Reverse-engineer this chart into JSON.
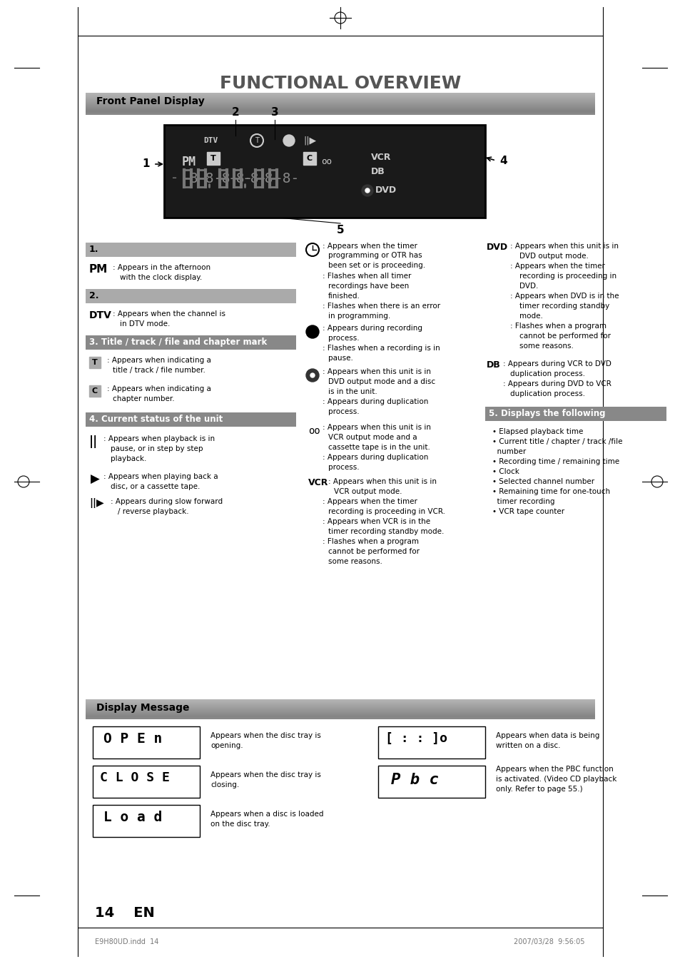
{
  "title": "FUNCTIONAL OVERVIEW",
  "section1_title": "Front Panel Display",
  "section2_title": "Display Message",
  "page_number": "14    EN",
  "footer_left": "E9H80UD.indd  14",
  "footer_right": "2007/03/28  9:56:05",
  "bg_color": "#ffffff",
  "header_bar_color": "#cccccc",
  "section_bar_color": "#888888",
  "gray_bar_color": "#aaaaaa",
  "dark_gray": "#555555"
}
